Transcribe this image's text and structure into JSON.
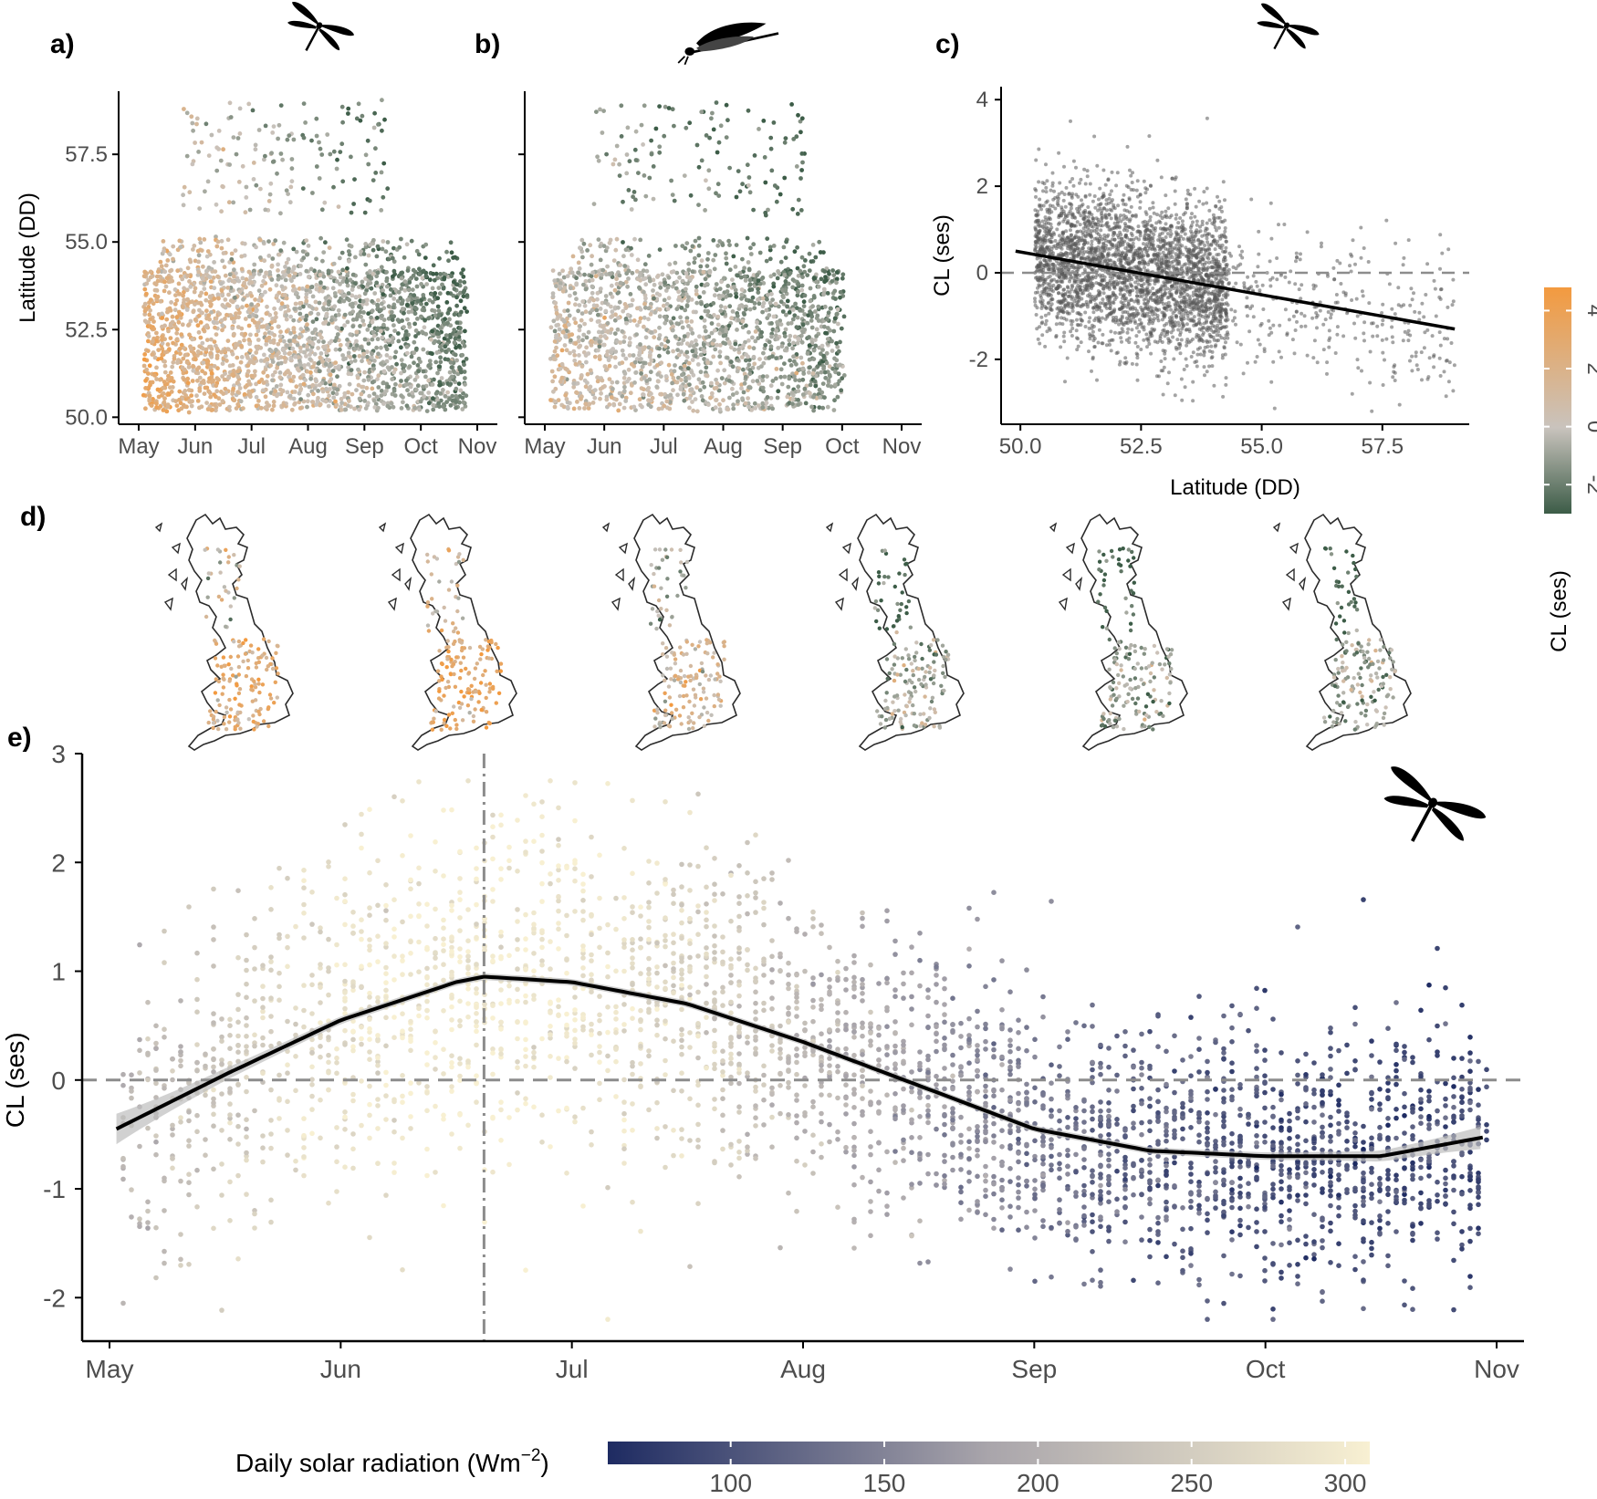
{
  "panels": {
    "a": {
      "letter": "a)"
    },
    "b": {
      "letter": "b)"
    },
    "c": {
      "letter": "c)"
    },
    "d": {
      "letter": "d)"
    },
    "e": {
      "letter": "e)"
    }
  },
  "colors": {
    "cl_high": "#f39a3f",
    "cl_mid": "#c9c3bd",
    "cl_low": "#3c5c47",
    "solar_low": "#1e2b62",
    "solar_mid": "#a9a5ab",
    "solar_high": "#f8f0d2",
    "point_grey": "#5a5a5a",
    "fit_line": "#000000",
    "ref_line": "#8c8c8c"
  },
  "icons": {
    "a": "dragonfly-icon",
    "b": "damselfly-icon",
    "c": "dragonfly-icon",
    "e": "dragonfly-icon"
  },
  "maps": {
    "count": 6,
    "icon": "great-britain-map-icon"
  },
  "legend_cl": {
    "title": "CL (ses)",
    "ticks": [
      {
        "value": 4,
        "label": "4"
      },
      {
        "value": 2,
        "label": "2"
      },
      {
        "value": 0,
        "label": "0"
      },
      {
        "value": -2,
        "label": "-2"
      }
    ],
    "range": [
      -3,
      4.8
    ]
  },
  "legend_solar": {
    "title_main": "Daily solar radiation (Wm",
    "title_sup": "−2",
    "title_close": ")",
    "ticks": [
      {
        "value": 100,
        "label": "100"
      },
      {
        "value": 150,
        "label": "150"
      },
      {
        "value": 200,
        "label": "200"
      },
      {
        "value": 250,
        "label": "250"
      },
      {
        "value": 300,
        "label": "300"
      }
    ],
    "range": [
      60,
      308
    ]
  },
  "chart_data": [
    {
      "id": "a",
      "type": "scatter",
      "ylabel": "Latitude (DD)",
      "x_ticks": [
        "May",
        "Jun",
        "Jul",
        "Aug",
        "Sep",
        "Oct",
        "Nov"
      ],
      "y_ticks": [
        "50.0",
        "52.5",
        "55.0",
        "57.5"
      ],
      "ylim": [
        49.8,
        59.3
      ],
      "color_by": "CL (ses)",
      "legend": "right"
    },
    {
      "id": "b",
      "type": "scatter",
      "x_ticks": [
        "May",
        "Jun",
        "Jul",
        "Aug",
        "Sep",
        "Oct",
        "Nov"
      ],
      "ylim": [
        49.8,
        59.3
      ],
      "color_by": "CL (ses)"
    },
    {
      "id": "c",
      "type": "scatter",
      "xlabel": "Latitude (DD)",
      "ylabel": "CL (ses)",
      "x_ticks": [
        "50.0",
        "52.5",
        "55.0",
        "57.5"
      ],
      "y_ticks": [
        "4",
        "2",
        "0",
        "-2"
      ],
      "xlim": [
        49.6,
        59.3
      ],
      "ylim": [
        -3.5,
        4.3
      ],
      "fit": {
        "type": "linear",
        "x": [
          49.9,
          59.0
        ],
        "y": [
          0.5,
          -1.3
        ]
      },
      "reference_line": {
        "y": 0
      }
    },
    {
      "id": "e",
      "type": "scatter",
      "ylabel": "CL (ses)",
      "x_ticks": [
        "May",
        "Jun",
        "Jul",
        "Aug",
        "Sep",
        "Oct",
        "Nov"
      ],
      "y_ticks": [
        "3",
        "2",
        "1",
        "0",
        "-1",
        "-2"
      ],
      "ylim": [
        -2.4,
        3.0
      ],
      "color_by": "Daily solar radiation (Wm−2)",
      "smooth": {
        "x_month": [
          0.03,
          0.5,
          1.0,
          1.5,
          1.62,
          2.0,
          2.5,
          3.0,
          3.5,
          4.0,
          4.5,
          5.0,
          5.5,
          5.96
        ],
        "y": [
          -0.45,
          0.05,
          0.55,
          0.9,
          0.95,
          0.9,
          0.7,
          0.35,
          -0.05,
          -0.45,
          -0.65,
          -0.7,
          -0.7,
          -0.52
        ]
      },
      "reference_line": {
        "y": 0
      },
      "peak_marker": {
        "x_month": 1.62
      }
    }
  ]
}
